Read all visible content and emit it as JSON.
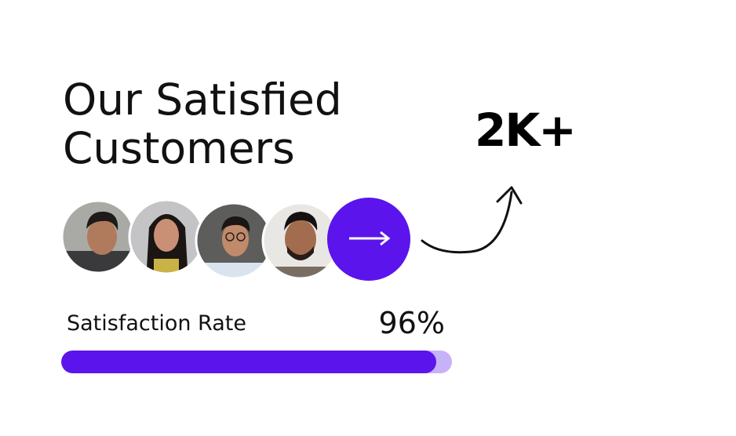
{
  "title": "Our Satisfied Customers",
  "stat": "2K+",
  "progress": {
    "label": "Satisfaction Rate",
    "value": {
      "value": 96,
      "label": "96%"
    }
  }
}
